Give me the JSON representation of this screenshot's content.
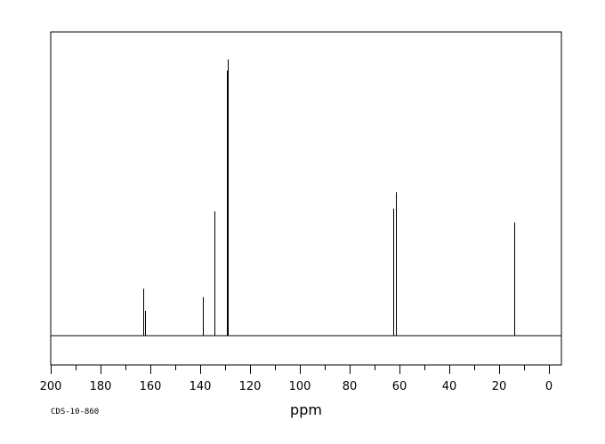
{
  "chart_data": {
    "type": "line",
    "title": "",
    "xlabel": "ppm",
    "ylabel": "",
    "xlim": [
      200,
      -5
    ],
    "x_reversed": true,
    "ylim": [
      0,
      1
    ],
    "x_ticks": [
      200,
      180,
      160,
      140,
      120,
      100,
      80,
      60,
      40,
      20,
      0
    ],
    "grid": false,
    "legend": "none",
    "series": [
      {
        "peaks": [
          {
            "ppm": 162.7,
            "intensity": 0.17
          },
          {
            "ppm": 162.3,
            "intensity": 0.09
          },
          {
            "ppm": 138.9,
            "intensity": 0.14
          },
          {
            "ppm": 134.3,
            "intensity": 0.45
          },
          {
            "ppm": 129.4,
            "intensity": 0.96
          },
          {
            "ppm": 128.8,
            "intensity": 1.0
          },
          {
            "ppm": 62.6,
            "intensity": 0.46
          },
          {
            "ppm": 61.3,
            "intensity": 0.52
          },
          {
            "ppm": 13.9,
            "intensity": 0.41
          }
        ]
      }
    ]
  },
  "footer": {
    "code": "CDS-10-860"
  },
  "colors": {
    "line": "#000000",
    "background": "#ffffff"
  }
}
